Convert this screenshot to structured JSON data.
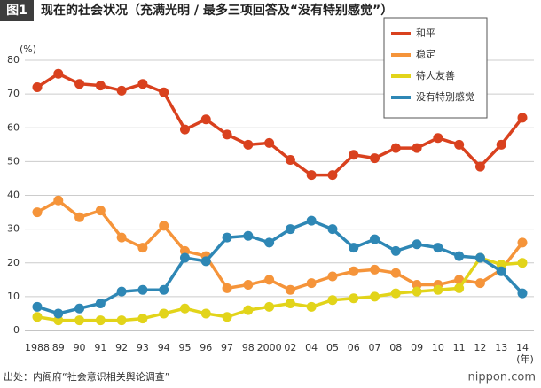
{
  "figure_label": "图1",
  "source": "出处：内阁府“社会意识相关舆论调查”",
  "logo": "nippon.com",
  "chart_data": {
    "type": "line",
    "title": "现在的社会状况（充满光明 / 最多三项回答及“没有特别感觉”）",
    "y_unit": "(%)",
    "x_unit": "(年)",
    "categories": [
      "1988",
      "89",
      "90",
      "91",
      "92",
      "93",
      "94",
      "95",
      "96",
      "97",
      "98",
      "2000",
      "02",
      "04",
      "05",
      "06",
      "07",
      "08",
      "09",
      "10",
      "11",
      "12",
      "13",
      "14"
    ],
    "series": [
      {
        "name": "和平",
        "color": "#d9411e",
        "values": [
          72,
          76,
          73,
          72.5,
          71,
          73,
          70.5,
          59.5,
          62.5,
          58,
          55,
          55.5,
          50.5,
          46,
          46,
          52,
          51,
          54,
          54,
          57,
          55,
          48.5,
          55,
          63
        ]
      },
      {
        "name": "稳定",
        "color": "#f5943a",
        "values": [
          35,
          38.5,
          33.5,
          35.5,
          27.5,
          24.5,
          31,
          23.5,
          22,
          12.5,
          13.5,
          15,
          12,
          14,
          16,
          17.5,
          18,
          17,
          13.5,
          13.5,
          15,
          14,
          18,
          26
        ]
      },
      {
        "name": "待人友善",
        "color": "#e2d41a",
        "values": [
          4,
          3,
          3,
          3,
          3,
          3.5,
          5,
          6.5,
          5,
          4,
          6,
          7,
          8,
          7,
          9,
          9.5,
          10,
          11,
          11.5,
          12,
          12.5,
          21.5,
          19.5,
          20
        ]
      },
      {
        "name": "没有特别感觉",
        "color": "#2e87b5",
        "values": [
          7,
          5,
          6.5,
          8,
          11.5,
          12,
          12,
          21.5,
          20.5,
          27.5,
          28,
          26,
          30,
          32.5,
          30,
          24.5,
          27,
          23.5,
          25.5,
          24.5,
          22,
          21.5,
          17.5,
          11
        ]
      }
    ],
    "ylim": [
      0,
      80
    ],
    "yticks": [
      0,
      10,
      20,
      30,
      40,
      50,
      60,
      70,
      80
    ],
    "grid": true,
    "legend": "top-right"
  }
}
